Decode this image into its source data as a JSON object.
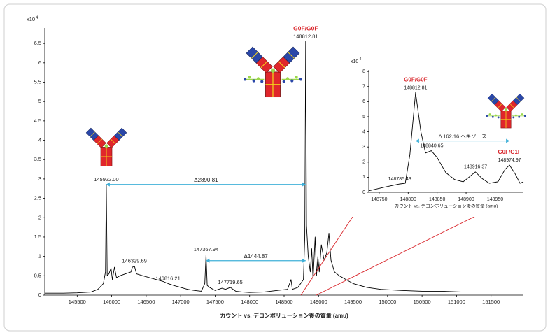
{
  "chart_data": [
    {
      "type": "line",
      "color": "#000000",
      "y_scale_label": "x10",
      "y_scale_exponent": 4,
      "x_label": "カウント vs. デコンボリューション後の質量 (amu)",
      "xlim": [
        145030,
        151970
      ],
      "ylim": [
        0,
        6.9
      ],
      "xticks": [
        145500,
        146000,
        146500,
        147000,
        147500,
        148000,
        148500,
        149000,
        149500,
        150000,
        150500,
        151000,
        151500
      ],
      "yticks": [
        0,
        0.5,
        1,
        1.5,
        2,
        2.5,
        3,
        3.5,
        4,
        4.5,
        5,
        5.5,
        6,
        6.5
      ],
      "x": [
        145030,
        145300,
        145500,
        145700,
        145800,
        145880,
        145910,
        145922,
        145935,
        145960,
        145990,
        146010,
        146040,
        146070,
        146120,
        146200,
        146280,
        146300,
        146330,
        146360,
        146450,
        146550,
        146650,
        146750,
        146816,
        146900,
        147000,
        147100,
        147200,
        147300,
        147350,
        147368,
        147385,
        147420,
        147500,
        147600,
        147650,
        147720,
        147800,
        147900,
        148000,
        148200,
        148400,
        148550,
        148600,
        148620,
        148700,
        148780,
        148800,
        148812.81,
        148825,
        148850,
        148880,
        148900,
        148920,
        148950,
        148970,
        148990,
        149010,
        149040,
        149080,
        149120,
        149150,
        149180,
        149230,
        149300,
        149400,
        149500,
        149700,
        149900,
        150200,
        150500,
        150800,
        151100,
        151400,
        151970
      ],
      "values": [
        0.05,
        0.05,
        0.06,
        0.08,
        0.15,
        0.3,
        0.6,
        2.85,
        0.5,
        0.55,
        0.7,
        0.4,
        0.72,
        0.45,
        0.5,
        0.55,
        0.6,
        0.72,
        0.75,
        0.55,
        0.5,
        0.45,
        0.4,
        0.35,
        0.3,
        0.25,
        0.2,
        0.15,
        0.12,
        0.1,
        0.3,
        1.05,
        0.25,
        0.2,
        0.12,
        0.18,
        0.15,
        0.2,
        0.1,
        0.08,
        0.07,
        0.08,
        0.12,
        0.15,
        0.4,
        0.15,
        0.2,
        0.4,
        1.5,
        6.55,
        1.8,
        1.0,
        0.6,
        1.2,
        0.4,
        1.5,
        0.5,
        1.0,
        0.6,
        1.3,
        0.9,
        1.1,
        1.6,
        0.9,
        0.6,
        0.5,
        0.4,
        0.3,
        0.2,
        0.15,
        0.12,
        0.1,
        0.1,
        0.08,
        0.08,
        0.08
      ],
      "peaks": [
        {
          "label": "145922.00",
          "x": 145922,
          "y": 2.85
        },
        {
          "label": "146329.69",
          "x": 146329.69,
          "y": 0.75
        },
        {
          "label": "146816.21",
          "x": 146816.21,
          "y": 0.3
        },
        {
          "label": "147367.94",
          "x": 147367.94,
          "y": 1.05
        },
        {
          "label": "147719.65",
          "x": 147719.65,
          "y": 0.2
        },
        {
          "label": "148812.81",
          "x": 148812.81,
          "y": 6.55,
          "name": "G0F/G0F",
          "name_color": "#d9262b"
        }
      ],
      "arrows": [
        {
          "label": "Δ2890.81",
          "x1": 145922,
          "x2": 148812.81,
          "y": 2.86
        },
        {
          "label": "Δ1444.87",
          "x1": 147367.94,
          "x2": 148812.81,
          "y": 0.89
        }
      ],
      "arrow_color": "#3fb0d8"
    },
    {
      "type": "line",
      "color": "#000000",
      "y_scale_label": "x10",
      "y_scale_exponent": 4,
      "x_label": "カウント vs. デコンボリューション後の質量 (amu)",
      "xlim": [
        148732,
        148999
      ],
      "ylim": [
        0,
        8.1
      ],
      "xticks": [
        148750,
        148800,
        148850,
        148900,
        148950
      ],
      "yticks": [
        0,
        1,
        2,
        3,
        4,
        5,
        6,
        7,
        8
      ],
      "x": [
        148732,
        148760,
        148785,
        148795,
        148803,
        148812.81,
        148822,
        148830,
        148840,
        148850,
        148865,
        148880,
        148895,
        148905,
        148916,
        148928,
        148940,
        148955,
        148967,
        148975,
        148985,
        148993,
        148999
      ],
      "values": [
        0.1,
        0.35,
        0.55,
        0.6,
        2.5,
        6.6,
        4.0,
        2.6,
        2.75,
        2.3,
        1.3,
        0.85,
        0.7,
        1.0,
        1.35,
        0.9,
        0.6,
        0.7,
        1.5,
        1.8,
        1.2,
        0.6,
        0.7
      ],
      "peaks": [
        {
          "label": "148785.43",
          "x": 148785.43,
          "y": 0.55
        },
        {
          "label": "148812.81",
          "x": 148812.81,
          "y": 6.6,
          "name": "G0F/G0F",
          "name_color": "#d9262b"
        },
        {
          "label": "148840.65",
          "x": 148840.65,
          "y": 2.75
        },
        {
          "label": "148916.37",
          "x": 148916.37,
          "y": 1.35
        },
        {
          "label": "148974.97",
          "x": 148974.97,
          "y": 1.8,
          "name": "G0F/G1F",
          "name_color": "#d9262b"
        }
      ],
      "arrows": [
        {
          "label": "Δ 162.16 ヘキソース",
          "x1": 148812.81,
          "x2": 148974.97,
          "y": 3.4
        }
      ],
      "arrow_color": "#3fb0d8"
    }
  ]
}
